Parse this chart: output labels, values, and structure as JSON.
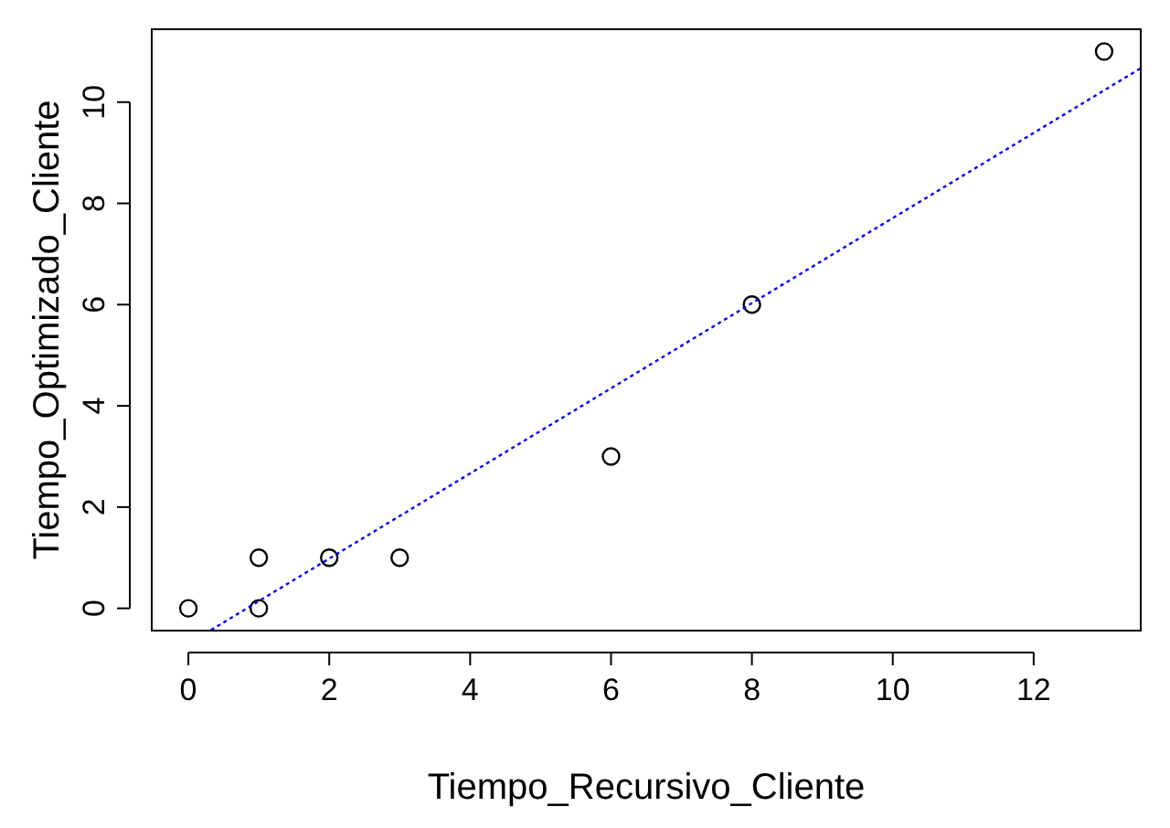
{
  "chart_data": {
    "type": "scatter",
    "xlabel": "Tiempo_Recursivo_Cliente",
    "ylabel": "Tiempo_Optimizado_Cliente",
    "xlim": [
      -0.52,
      13.52
    ],
    "ylim": [
      -0.44,
      11.44
    ],
    "xticks": [
      0,
      2,
      4,
      6,
      8,
      10,
      12
    ],
    "yticks": [
      0,
      2,
      4,
      6,
      8,
      10
    ],
    "grid": false,
    "series": [
      {
        "color": "#000000",
        "marker": "circle",
        "x": [
          0,
          1,
          1,
          2,
          3,
          6,
          8,
          13
        ],
        "values": [
          0,
          1,
          0,
          1,
          1,
          3,
          6,
          11
        ]
      },
      {
        "type": "line",
        "color": "#0000ff",
        "line_style": "dotted",
        "marker": "none",
        "x": [
          0.32,
          13.52
        ],
        "values": [
          -0.43,
          10.67
        ]
      }
    ]
  }
}
